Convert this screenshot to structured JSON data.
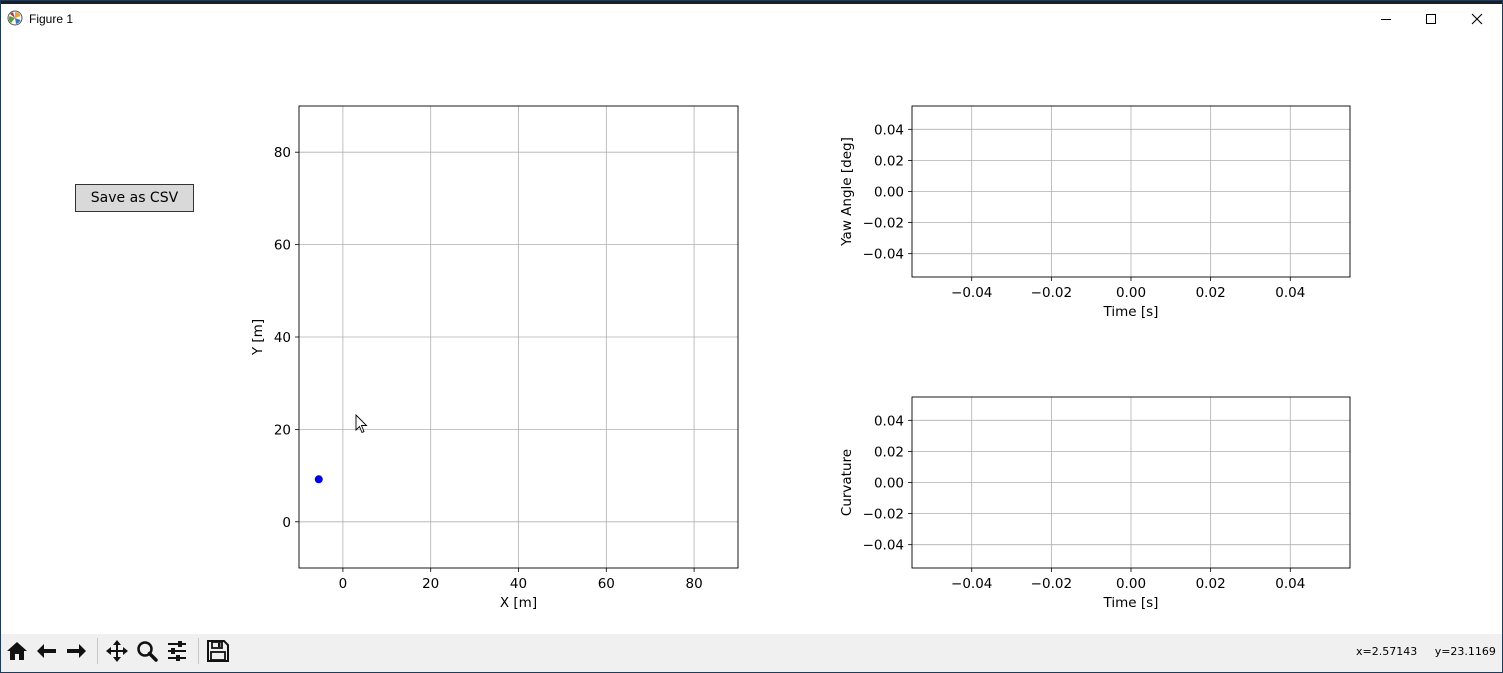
{
  "window": {
    "title": "Figure 1"
  },
  "controls": {
    "save_csv_label": "Save as CSV"
  },
  "toolbar": {
    "coords": "x=2.57143     y=23.1169"
  },
  "chart_data": [
    {
      "type": "scatter",
      "xlabel": "X [m]",
      "ylabel": "Y [m]",
      "xlim": [
        -10,
        90
      ],
      "ylim": [
        -10,
        90
      ],
      "xticks": [
        0,
        20,
        40,
        60,
        80
      ],
      "yticks": [
        0,
        20,
        40,
        60,
        80
      ],
      "grid": true,
      "points": [
        {
          "x": -5.5,
          "y": 9.2
        }
      ],
      "color": "#0000e0"
    },
    {
      "type": "line",
      "xlabel": "Time [s]",
      "ylabel": "Yaw Angle [deg]",
      "xlim": [
        -0.055,
        0.055
      ],
      "ylim": [
        -0.055,
        0.055
      ],
      "xticks": [
        -0.04,
        -0.02,
        0.0,
        0.02,
        0.04
      ],
      "yticks": [
        -0.04,
        -0.02,
        0.0,
        0.02,
        0.04
      ],
      "xtick_labels": [
        "−0.04",
        "−0.02",
        "0.00",
        "0.02",
        "0.04"
      ],
      "ytick_labels": [
        "−0.04",
        "−0.02",
        "0.00",
        "0.02",
        "0.04"
      ],
      "grid": true,
      "points": []
    },
    {
      "type": "line",
      "xlabel": "Time [s]",
      "ylabel": "Curvature",
      "xlim": [
        -0.055,
        0.055
      ],
      "ylim": [
        -0.055,
        0.055
      ],
      "xticks": [
        -0.04,
        -0.02,
        0.0,
        0.02,
        0.04
      ],
      "yticks": [
        -0.04,
        -0.02,
        0.0,
        0.02,
        0.04
      ],
      "xtick_labels": [
        "−0.04",
        "−0.02",
        "0.00",
        "0.02",
        "0.04"
      ],
      "ytick_labels": [
        "−0.04",
        "−0.02",
        "0.00",
        "0.02",
        "0.04"
      ],
      "grid": true,
      "points": []
    }
  ]
}
